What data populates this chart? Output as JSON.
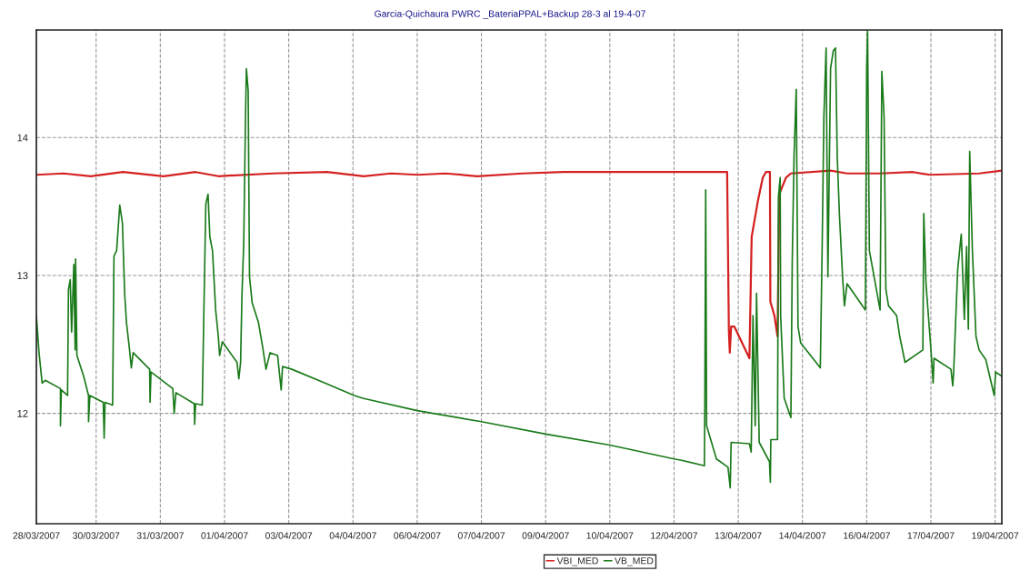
{
  "chart_data": {
    "type": "line",
    "title": "Garcia-Quichaura PWRC _BateriaPPAL+Backup 28-3 al 19-4-07",
    "xlim": [
      "2007-03-28T16:48",
      "2007-04-19T08:24"
    ],
    "ylim": [
      11.2,
      14.78
    ],
    "xticks": [
      {
        "value": "2007-03-28T16:48",
        "label": "28/03/2007"
      },
      {
        "value": "2007-03-30T00:58",
        "label": "30/03/2007"
      },
      {
        "value": "2007-03-31T11:31",
        "label": "31/03/2007"
      },
      {
        "value": "2007-04-01T22:05",
        "label": "01/04/2007"
      },
      {
        "value": "2007-04-03T08:38",
        "label": "03/04/2007"
      },
      {
        "value": "2007-04-04T19:12",
        "label": "04/04/2007"
      },
      {
        "value": "2007-04-06T05:46",
        "label": "06/04/2007"
      },
      {
        "value": "2007-04-07T16:19",
        "label": "07/04/2007"
      },
      {
        "value": "2007-04-09T02:53",
        "label": "09/04/2007"
      },
      {
        "value": "2007-04-10T13:26",
        "label": "10/04/2007"
      },
      {
        "value": "2007-04-12T00:00",
        "label": "12/04/2007"
      },
      {
        "value": "2007-04-13T10:34",
        "label": "13/04/2007"
      },
      {
        "value": "2007-04-14T21:07",
        "label": "14/04/2007"
      },
      {
        "value": "2007-04-16T07:41",
        "label": "16/04/2007"
      },
      {
        "value": "2007-04-17T18:14",
        "label": "17/04/2007"
      },
      {
        "value": "2007-04-19T04:48",
        "label": "19/04/2007"
      }
    ],
    "yticks": [
      12,
      13,
      14
    ],
    "grid": true,
    "legend": "bottom",
    "line_style": "solid",
    "series": [
      {
        "name": "VBI_MED",
        "color": "#d42020",
        "x": [
          "2007-03-28T16:48",
          "2007-03-29T07:26",
          "2007-03-29T22:05",
          "2007-03-30T15:22",
          "2007-03-31T13:12",
          "2007-04-01T06:29",
          "2007-04-01T18:43",
          "2007-04-03T00:00",
          "2007-04-04T05:17",
          "2007-04-05T00:58",
          "2007-04-05T15:36",
          "2007-04-06T06:14",
          "2007-04-06T20:53",
          "2007-04-07T14:10",
          "2007-04-08T14:24",
          "2007-04-09T12:29",
          "2007-04-11T03:36",
          "2007-04-13T04:34",
          "2007-04-13T05:31",
          "2007-04-13T06:00",
          "2007-04-13T06:43",
          "2007-04-13T08:24",
          "2007-04-13T16:34",
          "2007-04-13T17:46",
          "2007-04-13T21:07",
          "2007-04-13T23:46",
          "2007-04-14T01:26",
          "2007-04-14T03:36",
          "2007-04-14T03:50",
          "2007-04-14T06:00",
          "2007-04-14T07:41",
          "2007-04-14T08:38",
          "2007-04-14T12:14",
          "2007-04-14T14:53",
          "2007-04-15T12:14",
          "2007-04-15T21:07",
          "2007-04-16T14:53",
          "2007-04-17T08:38",
          "2007-04-17T17:31",
          "2007-04-18T20:10",
          "2007-04-19T08:24"
        ],
        "values": [
          13.73,
          13.74,
          13.72,
          13.75,
          13.72,
          13.75,
          13.72,
          13.74,
          13.75,
          13.72,
          13.74,
          13.73,
          13.74,
          13.72,
          13.74,
          13.75,
          13.75,
          13.75,
          12.59,
          12.44,
          12.63,
          12.63,
          12.4,
          13.28,
          13.54,
          13.71,
          13.75,
          13.75,
          12.81,
          12.71,
          12.56,
          13.59,
          13.71,
          13.74,
          13.76,
          13.74,
          13.74,
          13.75,
          13.73,
          13.74,
          13.76
        ]
      },
      {
        "name": "VB_MED",
        "color": "#1a7a1a",
        "x": [
          "2007-03-28T16:48",
          "2007-03-28T18:14",
          "2007-03-28T19:55",
          "2007-03-28T21:36",
          "2007-03-29T05:46",
          "2007-03-29T05:46",
          "2007-03-29T06:14",
          "2007-03-29T09:36",
          "2007-03-29T10:05",
          "2007-03-29T11:02",
          "2007-03-29T11:46",
          "2007-03-29T12:58",
          "2007-03-29T13:41",
          "2007-03-29T13:55",
          "2007-03-29T14:38",
          "2007-03-29T18:14",
          "2007-03-29T20:53",
          "2007-03-29T20:53",
          "2007-03-29T21:36",
          "2007-03-30T04:48",
          "2007-03-30T05:17",
          "2007-03-30T05:46",
          "2007-03-30T09:50",
          "2007-03-30T10:34",
          "2007-03-30T12:00",
          "2007-03-30T13:41",
          "2007-03-30T15:07",
          "2007-03-30T16:19",
          "2007-03-30T17:17",
          "2007-03-30T18:58",
          "2007-03-30T19:55",
          "2007-03-30T20:53",
          "2007-03-31T05:46",
          "2007-03-31T06:00",
          "2007-03-31T06:29",
          "2007-03-31T18:14",
          "2007-03-31T18:58",
          "2007-03-31T19:55",
          "2007-04-01T05:46",
          "2007-04-01T06:00",
          "2007-04-01T06:29",
          "2007-04-01T10:05",
          "2007-04-01T11:02",
          "2007-04-01T12:00",
          "2007-04-01T13:12",
          "2007-04-01T14:10",
          "2007-04-01T15:36",
          "2007-04-01T17:17",
          "2007-04-01T18:43",
          "2007-04-01T19:26",
          "2007-04-01T20:53",
          "2007-04-02T04:48",
          "2007-04-02T05:46",
          "2007-04-02T06:43",
          "2007-04-02T07:26",
          "2007-04-02T08:24",
          "2007-04-02T09:22",
          "2007-04-02T09:50",
          "2007-04-02T10:48",
          "2007-04-02T11:31",
          "2007-04-02T12:58",
          "2007-04-02T16:19",
          "2007-04-02T18:29",
          "2007-04-02T20:24",
          "2007-04-02T22:34",
          "2007-04-03T02:38",
          "2007-04-03T04:34",
          "2007-04-03T05:17",
          "2007-04-03T10:19",
          "2007-04-04T04:05",
          "2007-04-04T19:55",
          "2007-04-05T00:29",
          "2007-04-06T05:46",
          "2007-04-07T16:19",
          "2007-04-09T02:53",
          "2007-04-10T13:26",
          "2007-04-12T00:00",
          "2007-04-12T04:05",
          "2007-04-12T16:19",
          "2007-04-12T16:34",
          "2007-04-12T17:02",
          "2007-04-12T17:31",
          "2007-04-12T20:10",
          "2007-04-12T22:48",
          "2007-04-13T05:02",
          "2007-04-13T06:14",
          "2007-04-13T06:43",
          "2007-04-13T16:34",
          "2007-04-13T17:31",
          "2007-04-13T18:29",
          "2007-04-13T19:41",
          "2007-04-13T20:24",
          "2007-04-13T21:50",
          "2007-04-14T03:22",
          "2007-04-14T03:50",
          "2007-04-14T04:05",
          "2007-04-14T07:41",
          "2007-04-14T08:10",
          "2007-04-14T09:07",
          "2007-04-14T09:22",
          "2007-04-14T11:17",
          "2007-04-14T14:53",
          "2007-04-14T15:36",
          "2007-04-14T16:34",
          "2007-04-14T17:46",
          "2007-04-14T18:43",
          "2007-04-14T20:10",
          "2007-04-15T06:43",
          "2007-04-15T07:41",
          "2007-04-15T08:38",
          "2007-04-15T09:50",
          "2007-04-15T10:48",
          "2007-04-15T12:14",
          "2007-04-15T13:41",
          "2007-04-15T14:53",
          "2007-04-15T15:50",
          "2007-04-15T17:02",
          "2007-04-15T18:43",
          "2007-04-15T19:41",
          "2007-04-15T21:07",
          "2007-04-16T06:58",
          "2007-04-16T07:41",
          "2007-04-16T08:10",
          "2007-04-16T09:07",
          "2007-04-16T14:53",
          "2007-04-16T15:50",
          "2007-04-16T17:02",
          "2007-04-16T18:00",
          "2007-04-16T19:26",
          "2007-04-16T23:46",
          "2007-04-17T01:26",
          "2007-04-17T04:19",
          "2007-04-17T13:55",
          "2007-04-17T14:24",
          "2007-04-17T15:36",
          "2007-04-17T18:29",
          "2007-04-17T19:26",
          "2007-04-17T19:55",
          "2007-04-18T05:02",
          "2007-04-18T06:00",
          "2007-04-18T06:29",
          "2007-04-18T08:38",
          "2007-04-18T10:34",
          "2007-04-18T12:14",
          "2007-04-18T13:26",
          "2007-04-18T14:24",
          "2007-04-18T15:07",
          "2007-04-18T16:34",
          "2007-04-18T18:29",
          "2007-04-18T20:10",
          "2007-04-18T23:46",
          "2007-04-19T04:19",
          "2007-04-19T05:02",
          "2007-04-19T08:24"
        ],
        "values": [
          12.71,
          12.44,
          12.22,
          12.24,
          12.18,
          11.91,
          12.17,
          12.13,
          12.9,
          12.97,
          12.59,
          13.08,
          12.46,
          13.12,
          12.42,
          12.27,
          12.13,
          11.94,
          12.13,
          12.08,
          11.82,
          12.08,
          12.06,
          13.14,
          13.18,
          13.51,
          13.38,
          12.87,
          12.66,
          12.46,
          12.33,
          12.44,
          12.32,
          12.08,
          12.3,
          12.18,
          12.0,
          12.15,
          12.07,
          11.92,
          12.07,
          12.06,
          12.8,
          13.52,
          13.59,
          13.28,
          13.18,
          12.75,
          12.56,
          12.42,
          12.52,
          12.37,
          12.25,
          12.37,
          12.85,
          13.23,
          14.15,
          14.5,
          14.34,
          12.99,
          12.8,
          12.66,
          12.49,
          12.32,
          12.44,
          12.42,
          12.17,
          12.34,
          12.32,
          12.22,
          12.13,
          12.11,
          12.02,
          11.94,
          11.85,
          11.77,
          11.67,
          11.66,
          11.62,
          12.08,
          13.62,
          11.91,
          11.79,
          11.67,
          11.61,
          11.46,
          11.79,
          11.78,
          11.72,
          12.71,
          11.91,
          12.87,
          11.79,
          11.65,
          11.5,
          11.81,
          11.81,
          13.57,
          13.71,
          12.71,
          12.11,
          11.97,
          13.09,
          13.86,
          14.35,
          12.63,
          12.51,
          12.33,
          13.18,
          14.15,
          14.65,
          12.99,
          14.5,
          14.63,
          14.65,
          13.86,
          13.43,
          12.99,
          12.78,
          12.94,
          12.75,
          14.5,
          14.77,
          13.18,
          12.75,
          14.48,
          14.15,
          12.9,
          12.78,
          12.71,
          12.56,
          12.37,
          12.46,
          13.45,
          12.94,
          12.42,
          12.22,
          12.4,
          12.32,
          12.2,
          12.3,
          13.04,
          13.3,
          12.68,
          13.21,
          12.61,
          13.9,
          13.18,
          12.56,
          12.46,
          12.39,
          12.13,
          12.3,
          12.27
        ]
      }
    ]
  }
}
